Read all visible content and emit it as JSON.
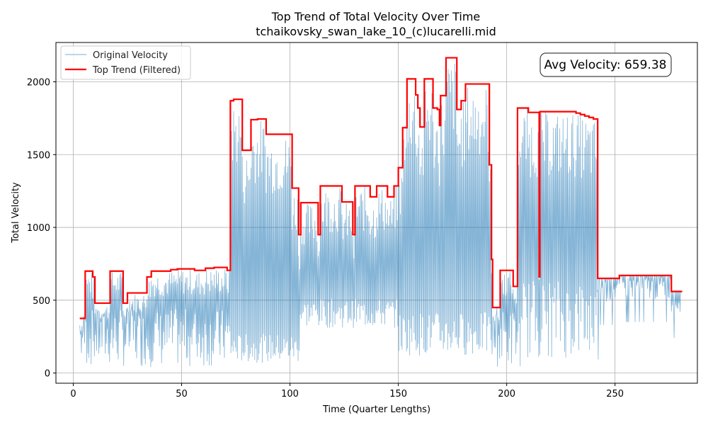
{
  "chart_data": {
    "type": "line",
    "title": "Top Trend of Total Velocity Over Time",
    "subtitle": "tchaikovsky_swan_lake_10_(c)lucarelli.mid",
    "xlabel": "Time (Quarter Lengths)",
    "ylabel": "Total Velocity",
    "xlim": [
      -8,
      288
    ],
    "ylim": [
      -70,
      2270
    ],
    "xticks": [
      0,
      50,
      100,
      150,
      200,
      250
    ],
    "yticks": [
      0,
      500,
      1000,
      1500,
      2000
    ],
    "grid": true,
    "legend": {
      "position": "top-left",
      "entries": [
        "Original Velocity",
        "Top Trend (Filtered)"
      ]
    },
    "annotation": {
      "text": "Avg Velocity: 659.38",
      "position": "top-right"
    },
    "colors": {
      "original": "#1f77b4",
      "trend": "#ff0000",
      "grid": "#b0b0b0"
    },
    "series": [
      {
        "name": "Top Trend (Filtered)",
        "style": "step",
        "points": [
          [
            3,
            375
          ],
          [
            5.5,
            375
          ],
          [
            5.5,
            700
          ],
          [
            9,
            700
          ],
          [
            9,
            660
          ],
          [
            10,
            660
          ],
          [
            10,
            480
          ],
          [
            17,
            480
          ],
          [
            17,
            700
          ],
          [
            23,
            700
          ],
          [
            23,
            480
          ],
          [
            25,
            480
          ],
          [
            25,
            550
          ],
          [
            34,
            550
          ],
          [
            34,
            660
          ],
          [
            36,
            660
          ],
          [
            36,
            700
          ],
          [
            45,
            700
          ],
          [
            45,
            710
          ],
          [
            48,
            710
          ],
          [
            48,
            715
          ],
          [
            56,
            715
          ],
          [
            56,
            705
          ],
          [
            61,
            705
          ],
          [
            61,
            720
          ],
          [
            65,
            720
          ],
          [
            65,
            725
          ],
          [
            71,
            725
          ],
          [
            71,
            705
          ],
          [
            72.5,
            705
          ],
          [
            72.5,
            1870
          ],
          [
            74,
            1870
          ],
          [
            74,
            1880
          ],
          [
            78,
            1880
          ],
          [
            78,
            1530
          ],
          [
            82,
            1530
          ],
          [
            82,
            1740
          ],
          [
            85,
            1740
          ],
          [
            85,
            1745
          ],
          [
            89,
            1745
          ],
          [
            89,
            1640
          ],
          [
            101,
            1640
          ],
          [
            101,
            1270
          ],
          [
            104,
            1270
          ],
          [
            104,
            950
          ],
          [
            105,
            950
          ],
          [
            105,
            1170
          ],
          [
            113,
            1170
          ],
          [
            113,
            950
          ],
          [
            114,
            950
          ],
          [
            114,
            1285
          ],
          [
            124,
            1285
          ],
          [
            124,
            1175
          ],
          [
            129,
            1175
          ],
          [
            129,
            950
          ],
          [
            130,
            950
          ],
          [
            130,
            1285
          ],
          [
            137,
            1285
          ],
          [
            137,
            1210
          ],
          [
            140,
            1210
          ],
          [
            140,
            1285
          ],
          [
            145,
            1285
          ],
          [
            145,
            1210
          ],
          [
            148,
            1210
          ],
          [
            148,
            1285
          ],
          [
            150,
            1285
          ],
          [
            150,
            1410
          ],
          [
            152,
            1410
          ],
          [
            152,
            1685
          ],
          [
            154,
            1685
          ],
          [
            154,
            2020
          ],
          [
            158,
            2020
          ],
          [
            158,
            1910
          ],
          [
            159,
            1910
          ],
          [
            159,
            1820
          ],
          [
            160,
            1820
          ],
          [
            160,
            1690
          ],
          [
            162,
            1690
          ],
          [
            162,
            2020
          ],
          [
            166,
            2020
          ],
          [
            166,
            1820
          ],
          [
            168,
            1820
          ],
          [
            168,
            1810
          ],
          [
            169,
            1810
          ],
          [
            169,
            1700
          ],
          [
            169.5,
            1700
          ],
          [
            169.5,
            1905
          ],
          [
            172,
            1905
          ],
          [
            172,
            2165
          ],
          [
            177,
            2165
          ],
          [
            177,
            1810
          ],
          [
            179,
            1810
          ],
          [
            179,
            1870
          ],
          [
            181,
            1870
          ],
          [
            181,
            1985
          ],
          [
            192,
            1985
          ],
          [
            192,
            1430
          ],
          [
            193,
            1430
          ],
          [
            193,
            780
          ],
          [
            193.5,
            780
          ],
          [
            193.5,
            450
          ],
          [
            197,
            450
          ],
          [
            197,
            705
          ],
          [
            203,
            705
          ],
          [
            203,
            595
          ],
          [
            205,
            595
          ],
          [
            205,
            1820
          ],
          [
            210,
            1820
          ],
          [
            210,
            1790
          ],
          [
            215,
            1790
          ],
          [
            215,
            660
          ],
          [
            215.3,
            660
          ],
          [
            215.3,
            1795
          ],
          [
            232,
            1795
          ],
          [
            232,
            1785
          ],
          [
            234,
            1785
          ],
          [
            234,
            1775
          ],
          [
            236,
            1775
          ],
          [
            236,
            1765
          ],
          [
            238,
            1765
          ],
          [
            238,
            1755
          ],
          [
            240,
            1755
          ],
          [
            240,
            1745
          ],
          [
            242,
            1745
          ],
          [
            242,
            650
          ],
          [
            252,
            650
          ],
          [
            252,
            670
          ],
          [
            276,
            670
          ],
          [
            276,
            560
          ],
          [
            281,
            560
          ]
        ]
      }
    ]
  }
}
